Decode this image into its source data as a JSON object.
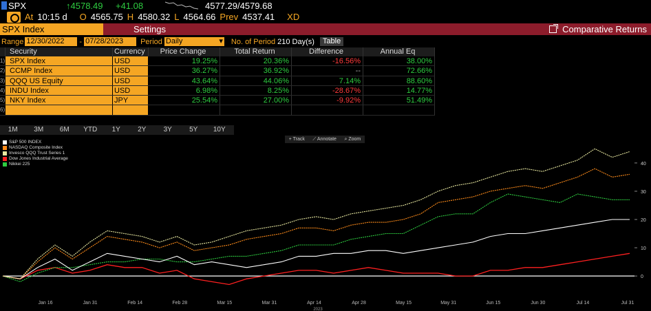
{
  "ticker": {
    "symbol": "SPX",
    "last": "↑4578.49",
    "change": "+41.08",
    "bid_ask": "4577.29/4579.68"
  },
  "stats": {
    "at_label": "At",
    "time": "10:15 d",
    "open_label": "O",
    "open": "4565.75",
    "high_label": "H",
    "high": "4580.32",
    "low_label": "L",
    "low": "4564.66",
    "prev_label": "Prev",
    "prev": "4537.41",
    "xd": "XD"
  },
  "header": {
    "security": "SPX Index",
    "settings": "Settings",
    "function_title": "Comparative Returns"
  },
  "controls": {
    "range_label": "Range",
    "start_date": "12/30/2022",
    "dash": "-",
    "end_date": "07/28/2023",
    "period_label": "Period",
    "period_value": "Daily",
    "num_periods_label": "No. of Period",
    "num_periods": "210 Day(s)",
    "table_button": "Table"
  },
  "table": {
    "headers": {
      "security": "Security",
      "currency": "Currency",
      "price_change": "Price Change",
      "total_return": "Total Return",
      "difference": "Difference",
      "annual_eq": "Annual Eq"
    },
    "rows": [
      {
        "num": "1)",
        "security": "SPX Index",
        "currency": "USD",
        "price_change": "19.25%",
        "total_return": "20.36%",
        "difference": "-16.56%",
        "annual_eq": "38.00%",
        "diff_class": "neg"
      },
      {
        "num": "2)",
        "security": "CCMP Index",
        "currency": "USD",
        "price_change": "36.27%",
        "total_return": "36.92%",
        "difference": "--",
        "annual_eq": "72.66%",
        "diff_class": "neu"
      },
      {
        "num": "3)",
        "security": "QQQ US Equity",
        "currency": "USD",
        "price_change": "43.64%",
        "total_return": "44.06%",
        "difference": "7.14%",
        "annual_eq": "88.60%",
        "diff_class": "pos"
      },
      {
        "num": "4)",
        "security": "INDU Index",
        "currency": "USD",
        "price_change": "6.98%",
        "total_return": "8.25%",
        "difference": "-28.67%",
        "annual_eq": "14.77%",
        "diff_class": "neg"
      },
      {
        "num": "5)",
        "security": "NKY Index",
        "currency": "JPY",
        "price_change": "25.54%",
        "total_return": "27.00%",
        "difference": "-9.92%",
        "annual_eq": "51.49%",
        "diff_class": "neg"
      },
      {
        "num": "6)",
        "security": "",
        "currency": "",
        "price_change": "",
        "total_return": "",
        "difference": "",
        "annual_eq": "",
        "diff_class": "neu"
      }
    ]
  },
  "period_buttons": [
    "1M",
    "3M",
    "6M",
    "YTD",
    "1Y",
    "2Y",
    "3Y",
    "5Y",
    "10Y"
  ],
  "chart_tools": [
    "Track",
    "Annotate",
    "Zoom"
  ],
  "chart_data": {
    "type": "line",
    "title": "",
    "xlabel": "2023",
    "ylabel": "",
    "ylim": [
      -8,
      48
    ],
    "y_ticks": [
      0,
      10,
      20,
      30,
      40
    ],
    "x_ticks": [
      "Jan 16",
      "Jan 31",
      "Feb 14",
      "Feb 28",
      "Mar 15",
      "Mar 31",
      "Apr 14",
      "Apr 28",
      "May 15",
      "May 31",
      "Jun 15",
      "Jun 30",
      "Jul 14",
      "Jul 31"
    ],
    "legend_position": "top-left",
    "colors": {
      "spx": "#ffffff",
      "ccmp": "#ff8c1a",
      "qqq": "#e8e8a0",
      "indu": "#ff2020",
      "nky": "#2ecc40"
    },
    "series": [
      {
        "name": "S&P 500 INDEX",
        "key": "spx",
        "values": [
          0,
          -1,
          3,
          6,
          2,
          5,
          8,
          7,
          6,
          5,
          7,
          4,
          5,
          4,
          3,
          4,
          5,
          7,
          7,
          8,
          8,
          9,
          9,
          8,
          9,
          10,
          11,
          12,
          14,
          15,
          15,
          16,
          17,
          18,
          19,
          20,
          20
        ]
      },
      {
        "name": "NASDAQ Composite Index",
        "key": "ccmp",
        "values": [
          0,
          -1,
          5,
          10,
          6,
          10,
          14,
          13,
          12,
          10,
          12,
          9,
          10,
          11,
          13,
          14,
          15,
          17,
          17,
          16,
          18,
          19,
          19,
          20,
          22,
          26,
          27,
          28,
          30,
          31,
          32,
          31,
          33,
          35,
          38,
          35,
          36
        ]
      },
      {
        "name": "Invesco QQQ Trust Series 1",
        "key": "qqq",
        "values": [
          0,
          -1,
          6,
          11,
          7,
          12,
          16,
          15,
          14,
          12,
          14,
          11,
          12,
          14,
          16,
          17,
          18,
          20,
          21,
          20,
          22,
          23,
          24,
          25,
          27,
          30,
          32,
          33,
          35,
          37,
          38,
          37,
          39,
          41,
          45,
          42,
          44
        ]
      },
      {
        "name": "Dow Jones Industrial Average",
        "key": "indu",
        "values": [
          0,
          -1,
          2,
          3,
          1,
          2,
          4,
          3,
          3,
          1,
          2,
          -1,
          -2,
          -3,
          -1,
          0,
          1,
          2,
          2,
          1,
          2,
          3,
          2,
          1,
          1,
          1,
          0,
          0,
          2,
          2,
          3,
          3,
          4,
          5,
          6,
          7,
          8
        ]
      },
      {
        "name": "Nikkei 225",
        "key": "nky",
        "values": [
          0,
          -2,
          1,
          3,
          3,
          4,
          5,
          5,
          6,
          6,
          5,
          5,
          6,
          7,
          7,
          8,
          9,
          11,
          11,
          11,
          13,
          14,
          15,
          15,
          18,
          21,
          22,
          22,
          26,
          29,
          28,
          27,
          26,
          29,
          28,
          27,
          27
        ]
      }
    ]
  }
}
